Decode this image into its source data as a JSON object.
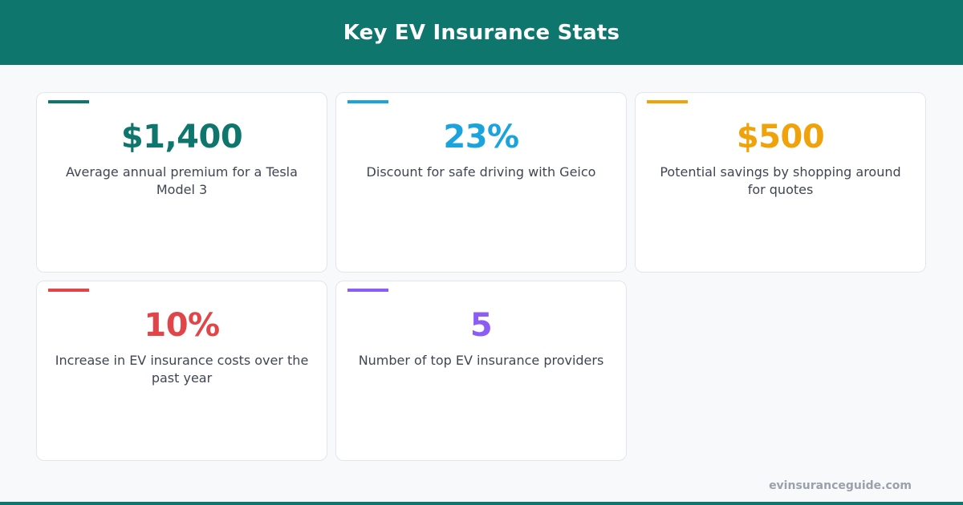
{
  "header": {
    "title": "Key EV Insurance Stats"
  },
  "colors": {
    "header_bg": "#0f766e",
    "teal": "#0f766e",
    "blue": "#1aa3dd",
    "amber": "#f0a20b",
    "red": "#e0454a",
    "purple": "#8b5cf6"
  },
  "stats": [
    {
      "value": "$1,400",
      "label": "Average annual premium for a Tesla Model 3",
      "color": "#0f766e"
    },
    {
      "value": "23%",
      "label": "Discount for safe driving with Geico",
      "color": "#1aa3dd"
    },
    {
      "value": "$500",
      "label": "Potential savings by shopping around for quotes",
      "color": "#f0a20b"
    },
    {
      "value": "10%",
      "label": "Increase in EV insurance costs over the past year",
      "color": "#e0454a"
    },
    {
      "value": "5",
      "label": "Number of top EV insurance providers",
      "color": "#8b5cf6"
    }
  ],
  "footer": {
    "site": "evinsuranceguide.com"
  }
}
